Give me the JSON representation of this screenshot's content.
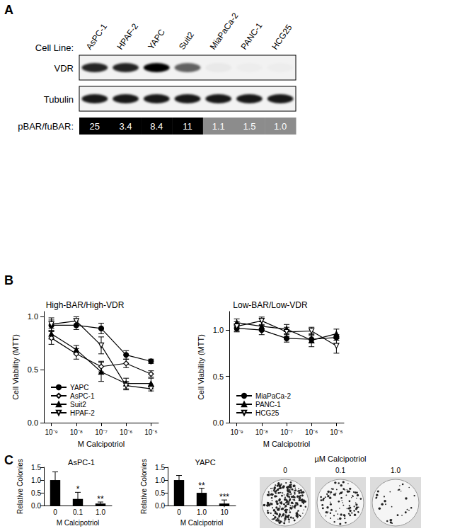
{
  "panel_labels": [
    "A",
    "B",
    "C"
  ],
  "blot": {
    "row_title": "Cell Line:",
    "cell_lines": [
      "AsPC-1",
      "HPAF-2",
      "YAPC",
      "Suit2",
      "MiaPaCa-2",
      "PANC-1",
      "HCG25"
    ],
    "rows": [
      {
        "label": "VDR",
        "intensity": [
          0.85,
          0.85,
          1.0,
          0.6,
          0.04,
          0.02,
          0.02
        ]
      },
      {
        "label": "Tubulin",
        "intensity": [
          0.9,
          0.9,
          0.9,
          0.9,
          0.9,
          0.9,
          0.9
        ]
      }
    ],
    "ratio": {
      "label": "pBAR/fuBAR:",
      "values": [
        25,
        3.4,
        8.4,
        11,
        1.1,
        1.5,
        1.0
      ],
      "value_labels": [
        "25",
        "3.4",
        "8.4",
        "11",
        "1.1",
        "1.5",
        "1.0"
      ],
      "colors": [
        "#000000",
        "#000000",
        "#000000",
        "#000000",
        "#8c8c8c",
        "#8c8c8c",
        "#8c8c8c"
      ]
    }
  },
  "chart_data": [
    {
      "type": "line",
      "title": "High-BAR/High-VDR",
      "x_label": "M Calcipotriol",
      "y_label": "Cell Viability (MTT)",
      "log": "x",
      "grid": false,
      "legend": "lower left",
      "x": [
        1e-09,
        1e-08,
        1e-07,
        1e-06,
        1e-05
      ],
      "xlim": [
        5e-10,
        2e-05
      ],
      "xticks": [
        {
          "value": 1e-09,
          "label": "10⁻⁹"
        },
        {
          "value": 1e-08,
          "label": "10⁻⁸"
        },
        {
          "value": 1e-07,
          "label": "10⁻⁷"
        },
        {
          "value": 1e-06,
          "label": "10⁻⁶"
        },
        {
          "value": 1e-05,
          "label": "10⁻⁵"
        }
      ],
      "ylim": [
        0,
        1.05
      ],
      "yticks": [
        {
          "value": 0,
          "label": "0.0"
        },
        {
          "value": 0.5,
          "label": "0.5"
        },
        {
          "value": 1,
          "label": "1.0"
        }
      ],
      "series": [
        {
          "name": "YAPC",
          "color": "#000000",
          "marker": "circle",
          "values": [
            0.92,
            0.92,
            0.89,
            0.64,
            0.58
          ],
          "errors": [
            0.05,
            0.04,
            0.05,
            0.04,
            0.02
          ]
        },
        {
          "name": "AsPC-1",
          "color": "#000000",
          "marker": "diamond-open",
          "values": [
            0.8,
            0.65,
            0.53,
            0.56,
            0.46
          ],
          "errors": [
            0.06,
            0.05,
            0.05,
            0.04,
            0.03
          ]
        },
        {
          "name": "Suit2",
          "color": "#000000",
          "marker": "triangle",
          "values": [
            0.84,
            0.69,
            0.48,
            0.37,
            0.37
          ],
          "errors": [
            0.05,
            0.04,
            0.09,
            0.05,
            0.05
          ]
        },
        {
          "name": "HPAF-2",
          "color": "#000000",
          "marker": "triangle-down-open",
          "values": [
            0.93,
            0.96,
            0.73,
            0.35,
            0.32
          ],
          "errors": [
            0.06,
            0.04,
            0.08,
            0.04,
            0.02
          ]
        }
      ]
    },
    {
      "type": "line",
      "title": "Low-BAR/Low-VDR",
      "x_label": "M Calcipotriol",
      "y_label": "Cell Viability (MTT)",
      "log": "x",
      "grid": false,
      "legend": "lower left",
      "x": [
        1e-09,
        1e-08,
        1e-07,
        1e-06,
        1e-05
      ],
      "xlim": [
        5e-10,
        2e-05
      ],
      "xticks": [
        {
          "value": 1e-09,
          "label": "10⁻⁹"
        },
        {
          "value": 1e-08,
          "label": "10⁻⁸"
        },
        {
          "value": 1e-07,
          "label": "10⁻⁷"
        },
        {
          "value": 1e-06,
          "label": "10⁻⁶"
        },
        {
          "value": 1e-05,
          "label": "10⁻⁵"
        }
      ],
      "ylim": [
        0,
        1.2
      ],
      "yticks": [
        {
          "value": 0,
          "label": "0.0"
        },
        {
          "value": 0.5,
          "label": "0.5"
        },
        {
          "value": 1,
          "label": "1.0"
        }
      ],
      "series": [
        {
          "name": "MiaPaCa-2",
          "color": "#000000",
          "marker": "circle",
          "values": [
            1.02,
            1.0,
            0.91,
            0.9,
            0.92
          ],
          "errors": [
            0.04,
            0.05,
            0.04,
            0.04,
            0.03
          ]
        },
        {
          "name": "PANC-1",
          "color": "#000000",
          "marker": "triangle",
          "values": [
            1.08,
            1.04,
            1.01,
            0.89,
            0.96
          ],
          "errors": [
            0.04,
            0.05,
            0.05,
            0.07,
            0.05
          ]
        },
        {
          "name": "HCG25",
          "color": "#000000",
          "marker": "triangle-down-open",
          "values": [
            1.04,
            1.1,
            0.98,
            0.99,
            0.83
          ],
          "errors": [
            0.05,
            0.04,
            0.05,
            0.04,
            0.08
          ]
        }
      ]
    },
    {
      "type": "bar",
      "title": "AsPC-1",
      "x_label": "M Calcipotriol",
      "y_label": "Relative Colonies",
      "grid": false,
      "color": "#000000",
      "categories": [
        "0",
        "0.1",
        "1.0"
      ],
      "values": [
        1.0,
        0.26,
        0.08
      ],
      "errors": [
        0.32,
        0.26,
        0.06
      ],
      "significance": [
        null,
        "*",
        "**"
      ],
      "ylim": [
        0,
        1.5
      ],
      "yticks": [
        {
          "value": 0,
          "label": "0.0"
        },
        {
          "value": 0.5,
          "label": "0.5"
        },
        {
          "value": 1,
          "label": "1.0"
        },
        {
          "value": 1.5,
          "label": "1.5"
        }
      ]
    },
    {
      "type": "bar",
      "title": "YAPC",
      "x_label": "M Calcipotriol",
      "y_label": "Relative Colonies",
      "grid": false,
      "color": "#000000",
      "categories": [
        "0",
        "1.0",
        "10"
      ],
      "values": [
        1.0,
        0.5,
        0.08
      ],
      "errors": [
        0.18,
        0.18,
        0.14
      ],
      "significance": [
        null,
        "**",
        "***"
      ],
      "ylim": [
        0,
        1.5
      ],
      "yticks": [
        {
          "value": 0,
          "label": "0.0"
        },
        {
          "value": 0.5,
          "label": "0.5"
        },
        {
          "value": 1,
          "label": "1.0"
        },
        {
          "value": 1.5,
          "label": "1.5"
        }
      ]
    }
  ],
  "colony_images": {
    "title": "µM Calcipotriol",
    "labels": [
      "0",
      "0.1",
      "1.0"
    ],
    "density": [
      1.0,
      0.35,
      0.12
    ]
  }
}
